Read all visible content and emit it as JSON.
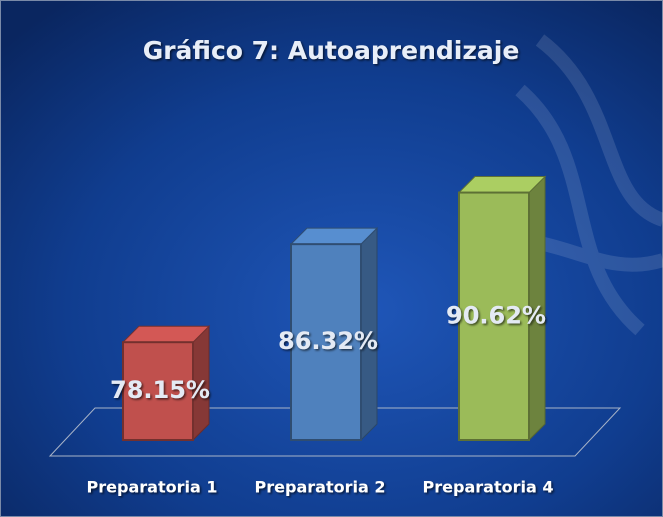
{
  "chart_data": {
    "type": "bar3d",
    "title": "Gráfico 7: Autoaprendizaje",
    "categories": [
      "Preparatoria 1",
      "Preparatoria 2",
      "Preparatoria 4"
    ],
    "values": [
      78.15,
      86.32,
      90.62
    ],
    "value_labels": [
      "78.15%",
      "86.32%",
      "90.62%"
    ],
    "colors": [
      "#c0504d",
      "#4f81bd",
      "#9bbb59"
    ],
    "ylim": [
      70,
      92
    ]
  }
}
